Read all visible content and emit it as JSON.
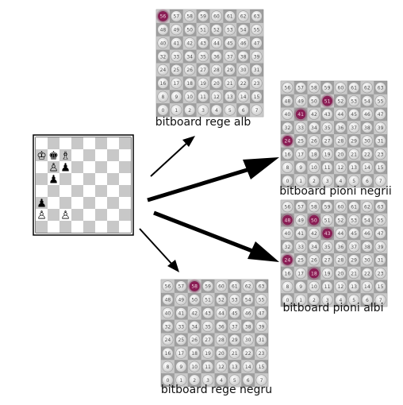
{
  "colors": {
    "background": "#ffffff",
    "panel_light": "#d9d9d9",
    "panel_mid": "#b5b5b5",
    "panel_dark": "#8c8c8c",
    "coin": "#efefef",
    "coin_text": "#4a4a4a",
    "highlight": "#8a1e55",
    "board_light": "#ffffff",
    "board_dark": "#c8c8c8",
    "arrow": "#000000"
  },
  "chessboard": {
    "pieces": [
      {
        "square": "a7",
        "glyph": "♔",
        "piece": "white-king"
      },
      {
        "square": "b7",
        "glyph": "♚",
        "piece": "black-king"
      },
      {
        "square": "c7",
        "glyph": "♗",
        "piece": "white-bishop"
      },
      {
        "square": "b6",
        "glyph": "♙",
        "piece": "white-pawn"
      },
      {
        "square": "c6",
        "glyph": "♟",
        "piece": "black-pawn"
      },
      {
        "square": "b5",
        "glyph": "♟",
        "piece": "black-pawn"
      },
      {
        "square": "a3",
        "glyph": "♟",
        "piece": "black-pawn"
      },
      {
        "square": "a2",
        "glyph": "♙",
        "piece": "white-pawn"
      },
      {
        "square": "c2",
        "glyph": "♙",
        "piece": "white-pawn"
      }
    ]
  },
  "boards": [
    {
      "id": "white-king",
      "label": "bitboard rege alb",
      "highlighted": [
        56
      ]
    },
    {
      "id": "black-pawns",
      "label": "bitboard pioni negrii",
      "highlighted": [
        51,
        41,
        24
      ]
    },
    {
      "id": "white-pawns",
      "label": "bitboard pioni albi",
      "highlighted": [
        48,
        50,
        43,
        24,
        18
      ]
    },
    {
      "id": "black-king",
      "label": "bitboard rege negru",
      "highlighted": [
        58
      ]
    }
  ]
}
